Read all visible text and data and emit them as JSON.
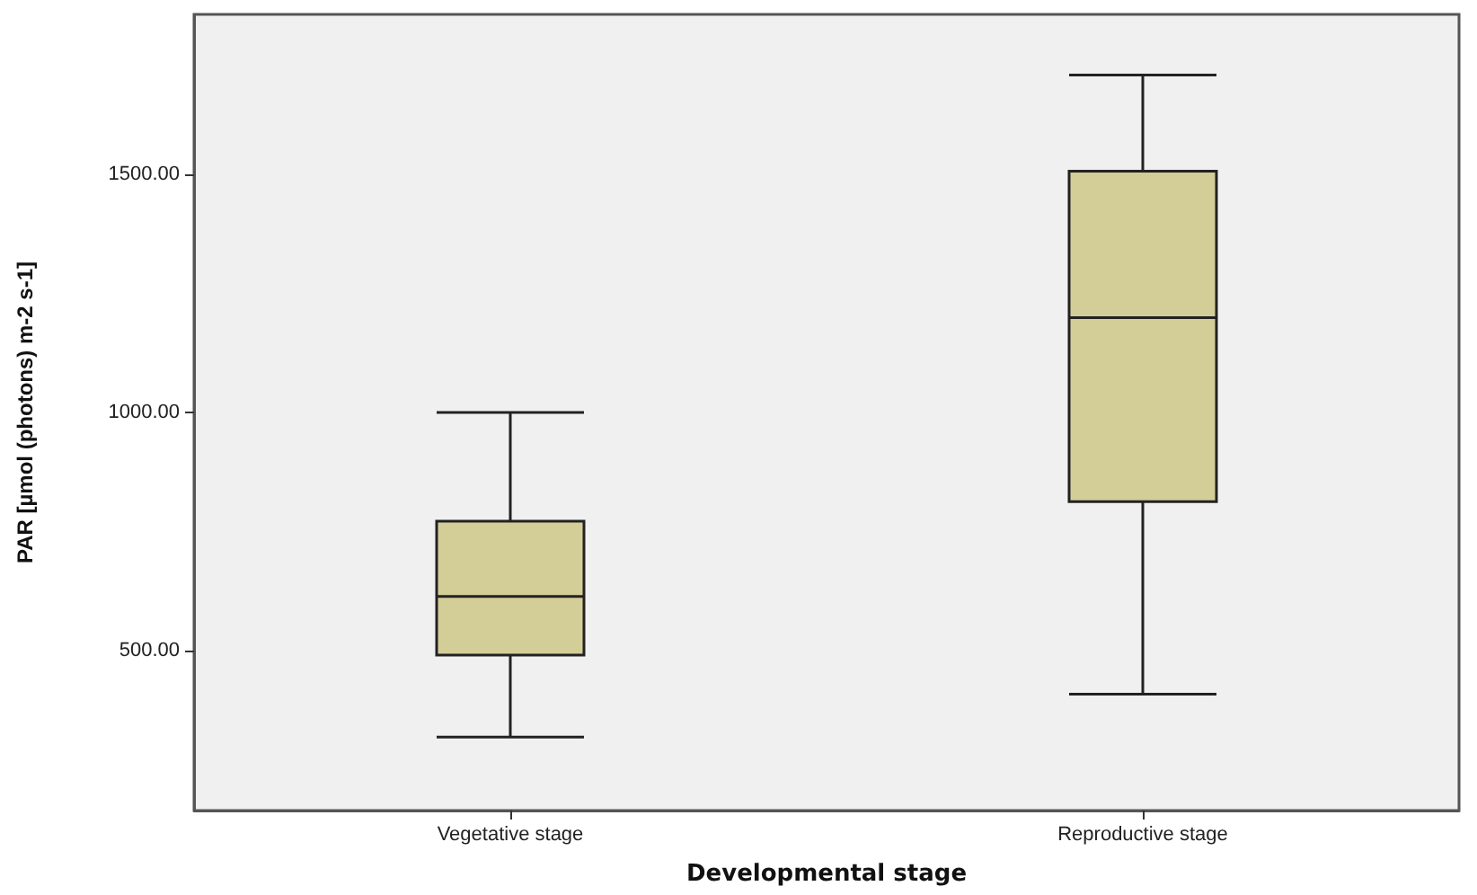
{
  "chart_data": {
    "type": "box",
    "xlabel": "Developmental stage",
    "ylabel": "PAR [µmol (photons) m-2 s-1]",
    "categories": [
      "Vegetative stage",
      "Reproductive stage"
    ],
    "boxes": [
      {
        "low": 319,
        "q1": 491,
        "median": 614,
        "q3": 772,
        "high": 1000
      },
      {
        "low": 409,
        "q1": 813,
        "median": 1199,
        "q3": 1506,
        "high": 1708
      }
    ],
    "color": "#d3cd98",
    "ylim": [
      165,
      1835
    ],
    "yticks": [
      {
        "value": 500,
        "label": "500.00"
      },
      {
        "value": 1000,
        "label": "1000.00"
      },
      {
        "value": 1500,
        "label": "1500.00"
      }
    ],
    "grid": false
  }
}
